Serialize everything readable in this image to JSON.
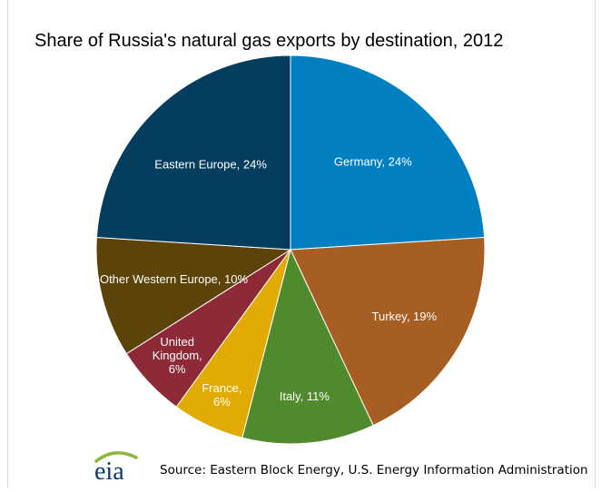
{
  "chart_data": {
    "type": "pie",
    "title": "Share of Russia's natural gas exports by destination, 2012",
    "slices": [
      {
        "label": "Germany, 24%",
        "lines": [
          "Germany, 24%"
        ],
        "value": 24,
        "color": "#0080c0"
      },
      {
        "label": "Turkey, 19%",
        "lines": [
          "Turkey, 19%"
        ],
        "value": 19,
        "color": "#a65e22"
      },
      {
        "label": "Italy, 11%",
        "lines": [
          "Italy, 11%"
        ],
        "value": 11,
        "color": "#4f8a2c"
      },
      {
        "label": "France, 6%",
        "lines": [
          "France,",
          "6%"
        ],
        "value": 6,
        "color": "#e2ab04"
      },
      {
        "label": "United Kingdom, 6%",
        "lines": [
          "United",
          "Kingdom,",
          "6%"
        ],
        "value": 6,
        "color": "#8e2937"
      },
      {
        "label": "Other Western Europe, 10%",
        "lines": [
          "Other Western Europe, 10%"
        ],
        "value": 10,
        "color": "#5c4309"
      },
      {
        "label": "Eastern Europe, 24%",
        "lines": [
          "Eastern Europe, 24%"
        ],
        "value": 24,
        "color": "#053d5f"
      }
    ]
  },
  "footer": {
    "logo_text": "eia",
    "source": "Source: Eastern Block Energy, U.S. Energy Information Administration",
    "logo_arc_color": "#8cb63c"
  }
}
